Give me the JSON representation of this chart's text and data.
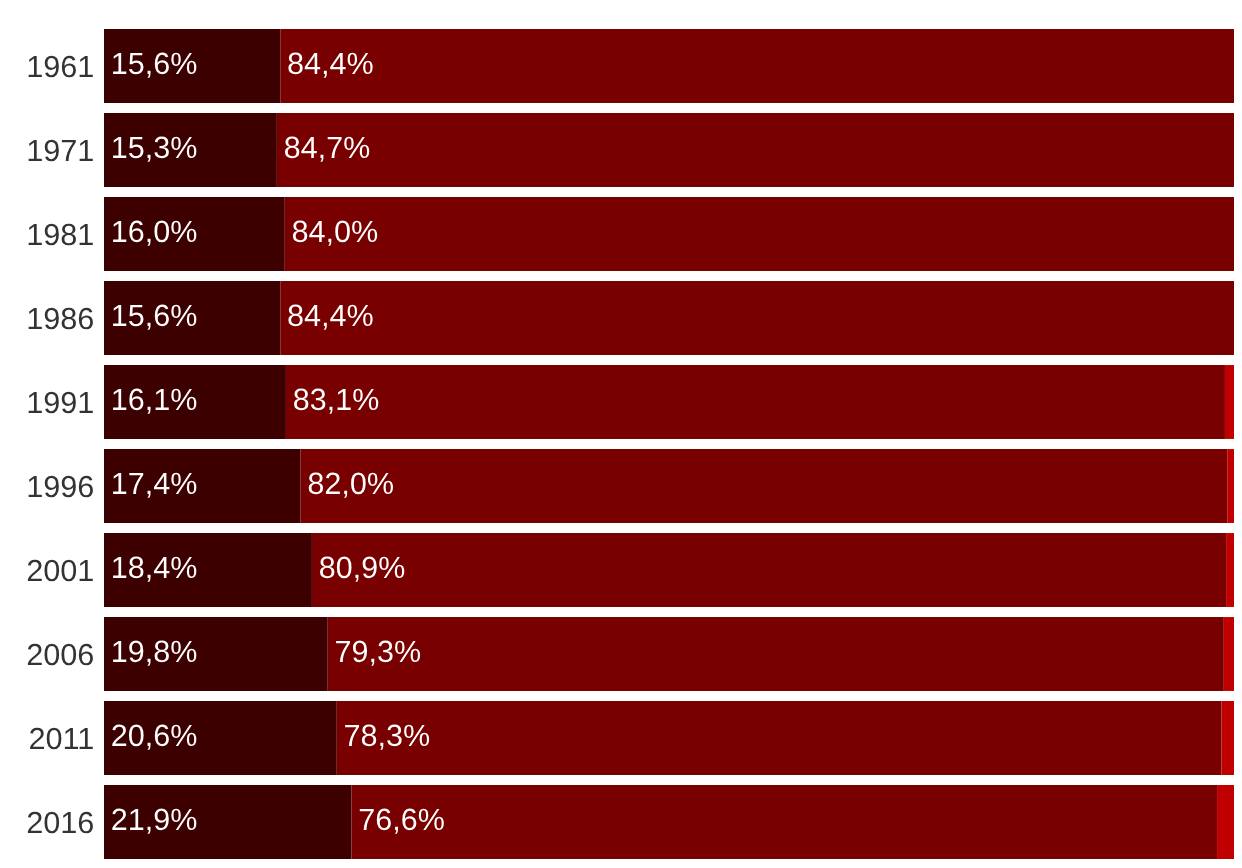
{
  "chart_data": {
    "type": "bar",
    "orientation": "horizontal",
    "stacked": true,
    "categories": [
      "1961",
      "1971",
      "1981",
      "1986",
      "1991",
      "1996",
      "2001",
      "2006",
      "2011",
      "2016"
    ],
    "xlim": [
      0,
      100
    ],
    "tick_labels": "y",
    "grid": false,
    "legend": false,
    "series": [
      {
        "color": "#3d0000",
        "values": [
          15.6,
          15.3,
          16.0,
          15.6,
          16.1,
          17.4,
          18.4,
          19.8,
          20.6,
          21.9
        ],
        "value_labels": [
          "15,6%",
          "15,3%",
          "16,0%",
          "15,6%",
          "16,1%",
          "17,4%",
          "18,4%",
          "19,8%",
          "20,6%",
          "21,9%"
        ]
      },
      {
        "color": "#790000",
        "values": [
          84.4,
          84.7,
          84.0,
          84.4,
          83.1,
          82.0,
          80.9,
          79.3,
          78.3,
          76.6
        ],
        "value_labels": [
          "84,4%",
          "84,7%",
          "84,0%",
          "84,4%",
          "83,1%",
          "82,0%",
          "80,9%",
          "79,3%",
          "78,3%",
          "76,6%"
        ]
      },
      {
        "color": "#c00000",
        "values": [
          0,
          0,
          0,
          0,
          0.8,
          0.6,
          0.7,
          0.9,
          1.1,
          1.5
        ]
      }
    ]
  }
}
